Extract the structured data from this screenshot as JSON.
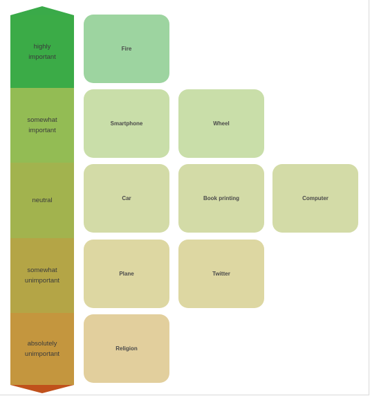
{
  "scale": {
    "levels": [
      {
        "label": "highly\nimportant",
        "color": "#3bab47"
      },
      {
        "label": "somewhat\nimportant",
        "color": "#93bc54"
      },
      {
        "label": "neutral",
        "color": "#a2b34e"
      },
      {
        "label": "somewhat\nunimportant",
        "color": "#b4a546"
      },
      {
        "label": "absolutely\nunimportant",
        "color": "#c4963e"
      }
    ],
    "arrow_top_color": "#3aaa49",
    "arrow_bottom_color": "#c0511b"
  },
  "rows": [
    {
      "items": [
        {
          "label": "Fire",
          "color": "#9dd4a0"
        }
      ]
    },
    {
      "items": [
        {
          "label": "Smartphone",
          "color": "#c9dea9"
        },
        {
          "label": "Wheel",
          "color": "#c9dea9"
        }
      ]
    },
    {
      "items": [
        {
          "label": "Car",
          "color": "#d3dba7"
        },
        {
          "label": "Book printing",
          "color": "#d3dba7"
        },
        {
          "label": "Computer",
          "color": "#d3dba7"
        }
      ]
    },
    {
      "items": [
        {
          "label": "Plane",
          "color": "#ddd7a2"
        },
        {
          "label": "Twitter",
          "color": "#ddd7a2"
        }
      ]
    },
    {
      "items": [
        {
          "label": "Religion",
          "color": "#e2cf9d"
        }
      ]
    }
  ]
}
